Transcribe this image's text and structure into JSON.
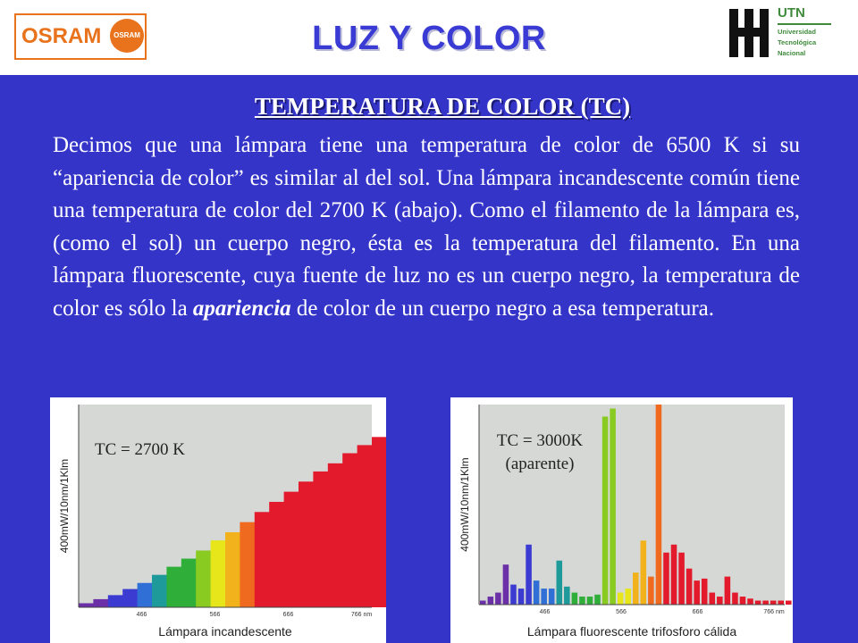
{
  "header": {
    "title": "LUZ Y COLOR",
    "osram_logo_text": "OSRAM",
    "osram_bulb_text": "OSRAM",
    "utn_title": "UTN",
    "utn_lines": [
      "Universidad",
      "Tecnológica",
      "Nacional"
    ]
  },
  "section": {
    "title": "TEMPERATURA DE COLOR (TC)",
    "paragraph_before": "Decimos que una lámpara tiene una temperatura de color de 6500 K si su “apariencia de color” es similar al del sol. Una lámpara incandescente común tiene una temperatura de color del 2700 K (abajo). Como el filamento de la lámpara es, (como el sol) un cuerpo negro, ésta es la temperatura del filamento. En una lámpara fluorescente, cuya fuente de luz no es un cuerpo negro, la temperatura de color es sólo la ",
    "paragraph_emphasis": "apariencia",
    "paragraph_after": " de color de un cuerpo negro a esa temperatura."
  },
  "charts": {
    "incandescent": {
      "label": "TC = 2700 K",
      "ylabel": "400mW/10nm/1Klm",
      "xlabel": "Lámpara incandescente",
      "ticks": [
        "466",
        "566",
        "666",
        "766 nm"
      ]
    },
    "fluorescent": {
      "label_line1": "TC = 3000K",
      "label_line2": "(aparente)",
      "ylabel": "400mW/10nm/1Klm",
      "xlabel": "Lámpara fluorescente trifosforo cálida",
      "ticks": [
        "466",
        "566",
        "666",
        "766 nm"
      ]
    }
  },
  "chart_data": [
    {
      "type": "area",
      "title": "TC = 2700 K",
      "xlabel": "Lámpara incandescente",
      "ylabel": "400mW/10nm/1Klm",
      "x": [
        380,
        400,
        420,
        440,
        460,
        480,
        500,
        520,
        540,
        560,
        580,
        600,
        620,
        640,
        660,
        680,
        700,
        720,
        740,
        760,
        780
      ],
      "values": [
        0.02,
        0.04,
        0.06,
        0.09,
        0.12,
        0.16,
        0.2,
        0.24,
        0.28,
        0.33,
        0.37,
        0.42,
        0.47,
        0.52,
        0.57,
        0.62,
        0.67,
        0.71,
        0.76,
        0.8,
        0.84
      ],
      "ylim": [
        0,
        1
      ]
    },
    {
      "type": "bar",
      "title": "TC = 3000K (aparente)",
      "xlabel": "Lámpara fluorescente trifosforo cálida",
      "ylabel": "400mW/10nm/1Klm",
      "x": [
        380,
        390,
        400,
        410,
        420,
        430,
        440,
        450,
        460,
        470,
        480,
        490,
        500,
        510,
        520,
        530,
        540,
        550,
        560,
        570,
        580,
        590,
        600,
        610,
        620,
        630,
        640,
        650,
        660,
        670,
        680,
        690,
        700,
        710,
        720,
        730,
        740,
        750,
        760,
        770,
        780
      ],
      "values": [
        0.02,
        0.04,
        0.06,
        0.2,
        0.1,
        0.08,
        0.3,
        0.12,
        0.08,
        0.08,
        0.22,
        0.09,
        0.06,
        0.04,
        0.04,
        0.05,
        0.94,
        0.98,
        0.06,
        0.08,
        0.16,
        0.32,
        0.14,
        1.0,
        0.26,
        0.3,
        0.26,
        0.18,
        0.12,
        0.13,
        0.06,
        0.04,
        0.14,
        0.06,
        0.04,
        0.03,
        0.02,
        0.02,
        0.02,
        0.02,
        0.02
      ],
      "ylim": [
        0,
        1
      ]
    }
  ]
}
